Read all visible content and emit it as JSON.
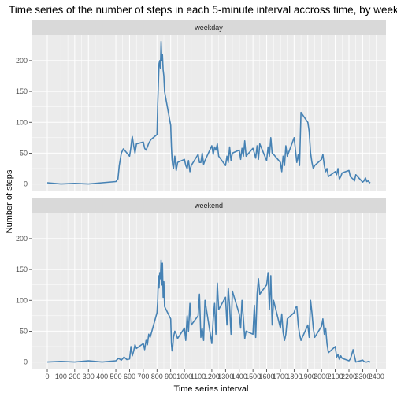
{
  "chart_data": {
    "type": "line",
    "title": "Time series of the number of steps in each 5-minute interval accross time, by weekday/weekend",
    "xlabel": "Time series interval",
    "ylabel": "Number of steps",
    "xlim": [
      -115,
      2470
    ],
    "ylim": [
      -12,
      242
    ],
    "x_ticks": [
      0,
      100,
      200,
      300,
      400,
      500,
      600,
      700,
      800,
      900,
      1000,
      1100,
      1200,
      1300,
      1400,
      1500,
      1600,
      1700,
      1800,
      1900,
      2000,
      2100,
      2200,
      2300,
      2400
    ],
    "y_ticks": [
      0,
      50,
      100,
      150,
      200
    ],
    "grid": true,
    "line_color": "#4682b4",
    "panel_bg": "#ebebeb",
    "strip_bg": "#d9d9d9",
    "panels": [
      {
        "strip_label": "weekday",
        "series": [
          {
            "x": [
              0,
              100,
              200,
              300,
              400,
              500,
              515,
              525,
              540,
              555,
              600,
              610,
              615,
              620,
              630,
              640,
              650,
              700,
              710,
              720,
              730,
              740,
              750,
              755,
              800,
              805,
              810,
              815,
              820,
              825,
              830,
              835,
              840,
              845,
              850,
              855,
              900,
              905,
              910,
              915,
              920,
              930,
              940,
              950,
              1000,
              1010,
              1020,
              1030,
              1040,
              1050,
              1100,
              1110,
              1120,
              1130,
              1140,
              1150,
              1200,
              1210,
              1220,
              1230,
              1240,
              1250,
              1300,
              1310,
              1320,
              1330,
              1340,
              1350,
              1400,
              1410,
              1420,
              1430,
              1440,
              1450,
              1500,
              1510,
              1520,
              1530,
              1540,
              1550,
              1600,
              1610,
              1620,
              1630,
              1640,
              1650,
              1700,
              1710,
              1720,
              1730,
              1740,
              1750,
              1800,
              1810,
              1820,
              1830,
              1840,
              1850,
              1900,
              1910,
              1920,
              1930,
              1940,
              1950,
              2000,
              2010,
              2020,
              2030,
              2040,
              2050,
              2100,
              2110,
              2120,
              2130,
              2140,
              2150,
              2200,
              2210,
              2220,
              2230,
              2240,
              2250,
              2300,
              2310,
              2320,
              2330,
              2340,
              2350,
              2355
            ],
            "y": [
              2,
              0,
              1,
              0,
              2,
              4,
              8,
              30,
              50,
              57,
              45,
              60,
              70,
              77,
              62,
              50,
              65,
              68,
              58,
              55,
              60,
              66,
              70,
              72,
              80,
              130,
              160,
              195,
              200,
              188,
              231,
              200,
              210,
              185,
              175,
              150,
              95,
              60,
              40,
              30,
              25,
              45,
              22,
              35,
              40,
              30,
              25,
              38,
              20,
              30,
              48,
              35,
              35,
              50,
              32,
              38,
              62,
              48,
              60,
              55,
              65,
              45,
              30,
              45,
              35,
              60,
              38,
              50,
              55,
              40,
              58,
              45,
              70,
              45,
              58,
              50,
              42,
              62,
              40,
              65,
              38,
              60,
              45,
              75,
              50,
              48,
              35,
              20,
              45,
              30,
              62,
              45,
              75,
              55,
              35,
              48,
              30,
              116,
              100,
              85,
              50,
              35,
              25,
              30,
              40,
              48,
              30,
              20,
              25,
              12,
              20,
              15,
              25,
              8,
              12,
              18,
              22,
              12,
              10,
              8,
              5,
              15,
              3,
              5,
              10,
              4,
              5,
              2,
              3
            ]
          }
        ]
      },
      {
        "strip_label": "weekend",
        "series": [
          {
            "x": [
              0,
              100,
              200,
              300,
              400,
              500,
              520,
              540,
              560,
              580,
              600,
              610,
              620,
              630,
              640,
              650,
              700,
              710,
              720,
              730,
              740,
              750,
              800,
              805,
              810,
              815,
              820,
              825,
              830,
              835,
              840,
              845,
              850,
              855,
              900,
              905,
              910,
              915,
              920,
              930,
              940,
              950,
              1000,
              1010,
              1020,
              1030,
              1040,
              1050,
              1100,
              1110,
              1120,
              1130,
              1140,
              1150,
              1200,
              1210,
              1220,
              1230,
              1240,
              1250,
              1300,
              1310,
              1320,
              1330,
              1340,
              1350,
              1400,
              1410,
              1420,
              1430,
              1440,
              1450,
              1500,
              1510,
              1520,
              1530,
              1540,
              1550,
              1600,
              1610,
              1620,
              1630,
              1640,
              1650,
              1700,
              1710,
              1720,
              1730,
              1740,
              1750,
              1800,
              1810,
              1820,
              1830,
              1840,
              1850,
              1900,
              1910,
              1920,
              1930,
              1940,
              1950,
              2000,
              2010,
              2020,
              2030,
              2040,
              2050,
              2100,
              2110,
              2120,
              2130,
              2140,
              2150,
              2200,
              2210,
              2220,
              2230,
              2240,
              2250,
              2300,
              2310,
              2320,
              2330,
              2340,
              2350,
              2355
            ],
            "y": [
              0,
              1,
              0,
              2,
              0,
              2,
              6,
              3,
              8,
              4,
              5,
              25,
              10,
              18,
              28,
              22,
              30,
              20,
              35,
              28,
              45,
              40,
              80,
              100,
              140,
              120,
              145,
              135,
              165,
              125,
              160,
              105,
              130,
              90,
              70,
              30,
              18,
              25,
              40,
              50,
              45,
              38,
              55,
              35,
              75,
              50,
              95,
              60,
              75,
              110,
              40,
              55,
              35,
              100,
              30,
              70,
              95,
              45,
              128,
              85,
              105,
              60,
              120,
              90,
              45,
              115,
              78,
              55,
              100,
              70,
              38,
              50,
              45,
              92,
              40,
              110,
              135,
              110,
              125,
              145,
              85,
              140,
              60,
              100,
              55,
              78,
              48,
              35,
              45,
              70,
              80,
              88,
              90,
              60,
              45,
              35,
              60,
              40,
              100,
              80,
              55,
              40,
              58,
              70,
              45,
              55,
              30,
              15,
              25,
              8,
              12,
              4,
              10,
              6,
              2,
              5,
              12,
              20,
              10,
              0,
              3,
              1,
              0,
              0,
              1,
              0,
              1
            ]
          }
        ]
      }
    ]
  }
}
